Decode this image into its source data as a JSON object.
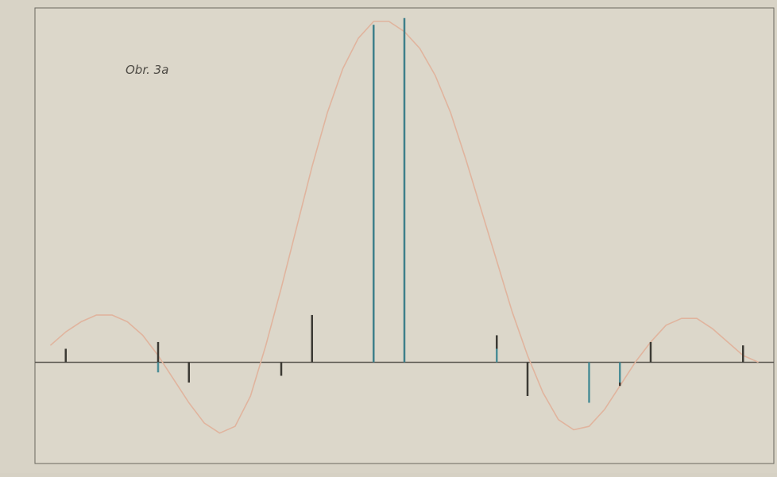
{
  "chart_data": {
    "type": "line",
    "title": "",
    "annotation": "Obr. 3a",
    "xlabel": "",
    "ylabel": "",
    "xlim": [
      -12,
      12
    ],
    "ylim": [
      -0.3,
      1.05
    ],
    "x_ticks": [],
    "y_ticks": [],
    "grid": false,
    "legend": "none",
    "series": [
      {
        "type": "line",
        "color": "#e0b49e",
        "x": [
          -11.5,
          -11,
          -10.5,
          -10,
          -9.5,
          -9,
          -8.5,
          -8,
          -7.5,
          -7,
          -6.5,
          -6,
          -5.5,
          -5,
          -4.5,
          -4,
          -3.5,
          -3,
          -2.5,
          -2,
          -1.5,
          -1,
          -0.5,
          0,
          0.5,
          1,
          1.5,
          2,
          2.5,
          3,
          3.5,
          4,
          4.5,
          5,
          5.5,
          6,
          6.5,
          7,
          7.5,
          8,
          8.5,
          9,
          9.5,
          10,
          10.5,
          11,
          11.5
        ],
        "y": [
          0.05,
          0.09,
          0.12,
          0.14,
          0.14,
          0.12,
          0.08,
          0.02,
          -0.05,
          -0.12,
          -0.18,
          -0.21,
          -0.19,
          -0.1,
          0.05,
          0.22,
          0.4,
          0.58,
          0.74,
          0.87,
          0.96,
          1.01,
          1.01,
          0.98,
          0.93,
          0.85,
          0.74,
          0.6,
          0.45,
          0.3,
          0.15,
          0.02,
          -0.09,
          -0.17,
          -0.2,
          -0.19,
          -0.14,
          -0.07,
          0.0,
          0.06,
          0.11,
          0.13,
          0.13,
          0.1,
          0.06,
          0.02,
          0.0
        ]
      },
      {
        "type": "stem",
        "color": "#3c3a34",
        "x": [
          -11,
          -8,
          -7,
          -4,
          -3,
          3,
          4,
          7,
          8,
          11
        ],
        "y": [
          0.04,
          0.06,
          -0.06,
          -0.04,
          0.14,
          0.08,
          -0.1,
          -0.07,
          0.06,
          0.05
        ]
      },
      {
        "type": "stem",
        "color": "#3e7f8a",
        "x": [
          -1,
          0
        ],
        "y": [
          1.0,
          1.02
        ]
      },
      {
        "type": "stem",
        "color": "#4b8d96",
        "x": [
          -8,
          3,
          6,
          7
        ],
        "y": [
          -0.03,
          0.04,
          -0.12,
          -0.06
        ]
      }
    ]
  }
}
